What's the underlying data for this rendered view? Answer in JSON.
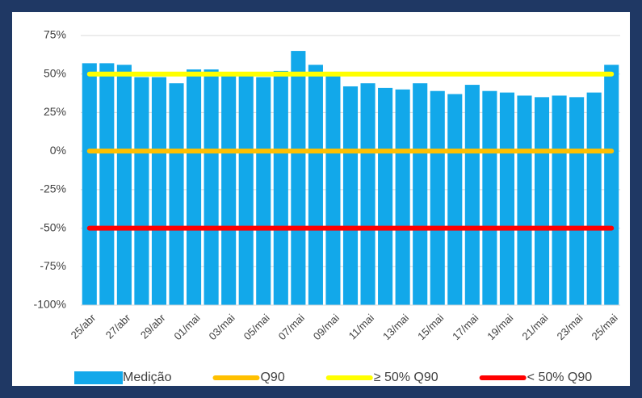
{
  "chart_data": {
    "type": "bar",
    "categories": [
      "25/abr",
      null,
      "27/abr",
      null,
      "29/abr",
      null,
      "01/mai",
      null,
      "03/mai",
      null,
      "05/mai",
      null,
      "07/mai",
      null,
      "09/mai",
      null,
      "11/mai",
      null,
      "13/mai",
      null,
      "15/mai",
      null,
      "17/mai",
      null,
      "19/mai",
      null,
      "21/mai",
      null,
      "23/mai",
      null,
      "25/mai"
    ],
    "series": [
      {
        "name": "Medição",
        "type": "bar",
        "color": "#12a8ea",
        "values": [
          57,
          57,
          56,
          48,
          48,
          44,
          53,
          53,
          50,
          50,
          48,
          52,
          65,
          56,
          50,
          42,
          44,
          41,
          40,
          44,
          39,
          37,
          43,
          39,
          38,
          36,
          35,
          36,
          35,
          38,
          56
        ]
      },
      {
        "name": "Q90",
        "type": "line",
        "color": "#ffc000",
        "values": [
          0,
          0,
          0,
          0,
          0,
          0,
          0,
          0,
          0,
          0,
          0,
          0,
          0,
          0,
          0,
          0,
          0,
          0,
          0,
          0,
          0,
          0,
          0,
          0,
          0,
          0,
          0,
          0,
          0,
          0,
          0
        ]
      },
      {
        "name": "≥ 50% Q90",
        "type": "line",
        "color": "#ffff00",
        "values": [
          50,
          50,
          50,
          50,
          50,
          50,
          50,
          50,
          50,
          50,
          50,
          50,
          50,
          50,
          50,
          50,
          50,
          50,
          50,
          50,
          50,
          50,
          50,
          50,
          50,
          50,
          50,
          50,
          50,
          50,
          50
        ]
      },
      {
        "name": "< 50% Q90",
        "type": "line",
        "color": "#ff0000",
        "values": [
          -50,
          -50,
          -50,
          -50,
          -50,
          -50,
          -50,
          -50,
          -50,
          -50,
          -50,
          -50,
          -50,
          -50,
          -50,
          -50,
          -50,
          -50,
          -50,
          -50,
          -50,
          -50,
          -50,
          -50,
          -50,
          -50,
          -50,
          -50,
          -50,
          -50,
          -50
        ]
      }
    ],
    "ylim": [
      -100,
      75
    ],
    "yticks": [
      {
        "value": -100,
        "label": "-100%"
      },
      {
        "value": -75,
        "label": "-75%"
      },
      {
        "value": -50,
        "label": "-50%"
      },
      {
        "value": -25,
        "label": "-25%"
      },
      {
        "value": 0,
        "label": "0%"
      },
      {
        "value": 25,
        "label": "25%"
      },
      {
        "value": 50,
        "label": "50%"
      },
      {
        "value": 75,
        "label": "75%"
      }
    ],
    "grid": true,
    "legend": "bottom"
  }
}
